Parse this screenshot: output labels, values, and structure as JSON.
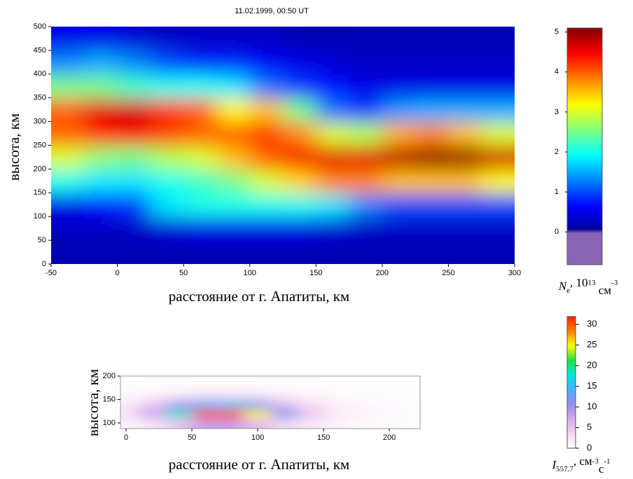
{
  "chart_data": [
    {
      "type": "heatmap",
      "title": "11.02.1999, 00:50 UT",
      "xlabel": "расстояние от г. Апатиты, км",
      "ylabel": "высота, км",
      "xlim": [
        -50,
        300
      ],
      "xticks": [
        -50,
        0,
        50,
        100,
        150,
        200,
        250,
        300
      ],
      "ylim": [
        0,
        500
      ],
      "yticks": [
        0,
        50,
        100,
        150,
        200,
        250,
        300,
        350,
        400,
        450,
        500
      ],
      "x": [
        -37.5,
        -12.5,
        12.5,
        37.5,
        62.5,
        87.5,
        112.5,
        137.5,
        162.5,
        187.5,
        212.5,
        237.5,
        262.5,
        287.5
      ],
      "y": [
        25,
        75,
        125,
        175,
        225,
        275,
        325,
        375,
        425,
        475
      ],
      "z": [
        [
          0.2,
          0.2,
          0.2,
          0.2,
          0.2,
          0.2,
          0.2,
          0.2,
          0.2,
          0.2,
          0.2,
          0.2,
          0.2,
          0.2
        ],
        [
          0.3,
          0.3,
          0.3,
          0.4,
          0.5,
          0.5,
          0.5,
          0.5,
          0.4,
          0.3,
          0.3,
          0.3,
          0.3,
          0.3
        ],
        [
          0.5,
          0.7,
          0.9,
          1.8,
          2.0,
          2.0,
          2.0,
          2.0,
          1.8,
          1.3,
          1.0,
          1.0,
          1.0,
          1.0
        ],
        [
          2.0,
          1.8,
          1.8,
          2.0,
          2.2,
          2.5,
          3.0,
          3.4,
          3.8,
          3.8,
          3.5,
          3.5,
          3.5,
          3.2
        ],
        [
          3.0,
          2.6,
          2.5,
          2.8,
          3.0,
          3.5,
          4.0,
          4.5,
          4.6,
          4.6,
          4.8,
          5.0,
          5.0,
          4.7
        ],
        [
          4.0,
          4.3,
          4.5,
          4.2,
          4.0,
          4.0,
          4.2,
          3.8,
          3.0,
          2.8,
          3.6,
          3.8,
          3.5,
          3.0
        ],
        [
          4.0,
          4.6,
          4.7,
          4.2,
          4.0,
          3.2,
          3.5,
          2.5,
          1.2,
          0.9,
          1.4,
          1.5,
          1.5,
          1.5
        ],
        [
          2.5,
          2.5,
          2.2,
          2.0,
          2.0,
          1.8,
          1.2,
          0.9,
          0.7,
          0.5,
          0.5,
          0.5,
          0.5,
          0.5
        ],
        [
          1.3,
          1.5,
          1.3,
          1.0,
          0.8,
          0.8,
          0.6,
          0.5,
          0.4,
          0.3,
          0.3,
          0.3,
          0.3,
          0.3
        ],
        [
          0.5,
          0.5,
          0.4,
          0.3,
          0.3,
          0.3,
          0.3,
          0.2,
          0.2,
          0.2,
          0.2,
          0.2,
          0.2,
          0.2
        ]
      ],
      "colormap": [
        "#00008f",
        "#0000ff",
        "#0080ff",
        "#00ffff",
        "#80ff80",
        "#ffff00",
        "#ff8000",
        "#ff0000",
        "#800000"
      ],
      "under_color": "#8a64b4",
      "clim": [
        -0.82,
        5.1
      ],
      "cticks": [
        0,
        1,
        2,
        3,
        4,
        5
      ],
      "clabel": [
        "N",
        "e",
        ", 10",
        "13",
        " см",
        "-3"
      ]
    },
    {
      "type": "heatmap",
      "xlabel": "расстояние от г. Апатиты, км",
      "ylabel": "высота, км",
      "xlim": [
        -4.3,
        223.4
      ],
      "xticks": [
        0,
        50,
        100,
        150,
        200
      ],
      "ylim": [
        88,
        200
      ],
      "yticks": [
        100,
        150,
        200
      ],
      "x": [
        0,
        20,
        40,
        60,
        80,
        100,
        120,
        140,
        160,
        180,
        200,
        220
      ],
      "y": [
        100,
        120,
        140,
        160,
        180,
        200
      ],
      "z": [
        [
          1,
          2,
          5,
          8,
          8,
          6,
          3,
          2,
          1,
          0.5,
          0.3,
          0.2
        ],
        [
          3,
          8,
          18,
          30,
          30,
          25,
          12,
          5,
          2,
          1,
          0.5,
          0.3
        ],
        [
          2,
          5,
          10,
          14,
          15,
          12,
          6,
          3,
          1.5,
          0.8,
          0.4,
          0.2
        ],
        [
          0.5,
          1,
          2,
          3,
          3,
          2.5,
          1.5,
          1,
          0.5,
          0.3,
          0.2,
          0.1
        ],
        [
          0.2,
          0.2,
          0.2,
          0.2,
          0.2,
          0.2,
          0.2,
          0.2,
          0.2,
          0.2,
          0.2,
          0.2
        ],
        [
          0,
          0,
          0,
          0,
          0,
          0,
          0,
          0,
          0,
          0,
          0,
          0
        ]
      ],
      "colormap": [
        "#ffffff",
        "#f6d6f2",
        "#d8a8ec",
        "#9a8cf0",
        "#40b0ff",
        "#00e8e0",
        "#20e040",
        "#ffff00",
        "#ff8000",
        "#ff2000"
      ],
      "clim": [
        0,
        31.9
      ],
      "cticks": [
        0,
        5,
        10,
        15,
        20,
        25,
        30
      ],
      "clabel": [
        "I",
        "557.7",
        ", см",
        "-3",
        "с",
        "-1"
      ]
    }
  ]
}
